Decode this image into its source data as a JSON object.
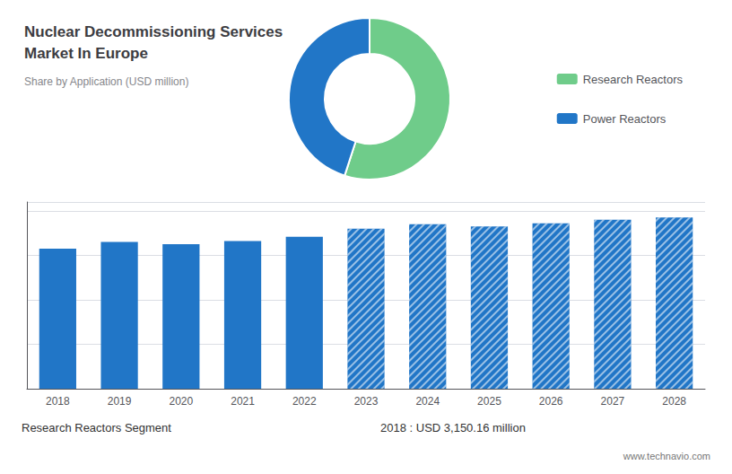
{
  "chart_data": [
    {
      "type": "pie",
      "title": "Nuclear Decommissioning Services\nMarket In Europe",
      "subtitle": "Share by Application (USD million)",
      "categories": [
        "Research Reactors",
        "Power Reactors"
      ],
      "values": [
        55,
        45
      ],
      "colors": [
        "#6fcc8a",
        "#2176c7"
      ],
      "legend": "right"
    },
    {
      "type": "bar",
      "categories": [
        "2018",
        "2019",
        "2020",
        "2021",
        "2022",
        "2023",
        "2024",
        "2025",
        "2026",
        "2027",
        "2028"
      ],
      "series": [
        {
          "color": "#2176c7",
          "values": [
            3150,
            3300,
            3250,
            3320,
            3420,
            null,
            null,
            null,
            null,
            null,
            null
          ]
        },
        {
          "color": "#2176c7",
          "values": [
            null,
            null,
            null,
            null,
            null,
            3600,
            3700,
            3650,
            3720,
            3800,
            3850
          ]
        }
      ],
      "ylim": [
        0,
        4200
      ],
      "yticks": [
        0,
        1000,
        2000,
        3000,
        4000
      ],
      "grid": true,
      "tick_labels": "x",
      "annotations": [
        "Research Reactors Segment",
        "2018 : USD 3,150.16 million",
        "www.technavio.com"
      ]
    }
  ]
}
